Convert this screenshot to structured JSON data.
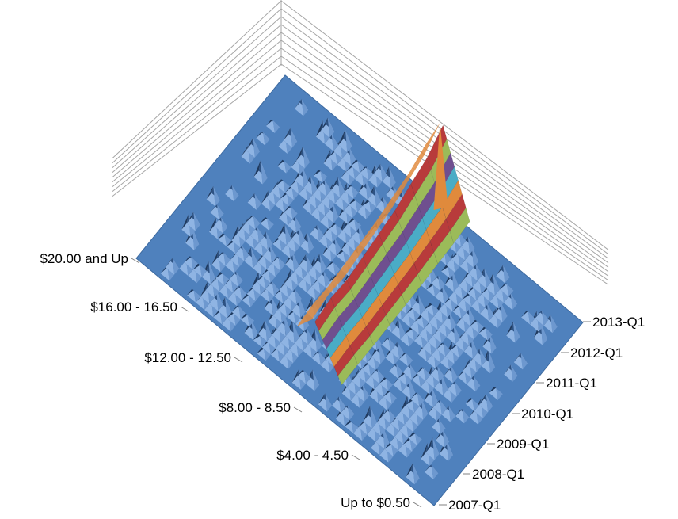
{
  "chart_data": {
    "type": "surface",
    "title": "",
    "xlabel": "",
    "ylabel": "",
    "wage_tick_labels": [
      "$20.00 and Up",
      "$16.00 - 16.50",
      "$12.00 - 12.50",
      "$8.00 - 8.50",
      "$4.00 - 4.50",
      "Up to $0.50"
    ],
    "time_tick_labels": [
      "2013-Q1",
      "2012-Q1",
      "2011-Q1",
      "2010-Q1",
      "2009-Q1",
      "2008-Q1",
      "2007-Q1"
    ],
    "wage_bins": [
      "Up to $0.50",
      "$4.00 - 4.50",
      "$8.00 - 8.50",
      "$12.00 - 12.50",
      "$16.00 - 16.50",
      "$20.00 and Up"
    ],
    "time_periods": [
      "2007-Q1",
      "2008-Q1",
      "2009-Q1",
      "2010-Q1",
      "2011-Q1",
      "2012-Q1",
      "2013-Q1"
    ],
    "surface_ridge": {
      "description_values_relative_height": [
        0.55,
        0.6,
        0.58,
        0.62,
        0.66,
        0.7,
        0.78,
        0.85,
        1.0
      ],
      "ridge_wage_bin": "$8.00 - 8.50"
    },
    "colors": {
      "base_surface": "#4f81bd",
      "light_facet": "#8fb4e3",
      "dark_facet": "#1f3a5f",
      "band_red": "#b83b3b",
      "band_green": "#9bbb59",
      "band_purple": "#6f4f8f",
      "band_teal": "#4aacc6",
      "band_orange": "#e08a3c",
      "wall_line": "#a6a6a6"
    },
    "grid": true,
    "legend": "none"
  }
}
